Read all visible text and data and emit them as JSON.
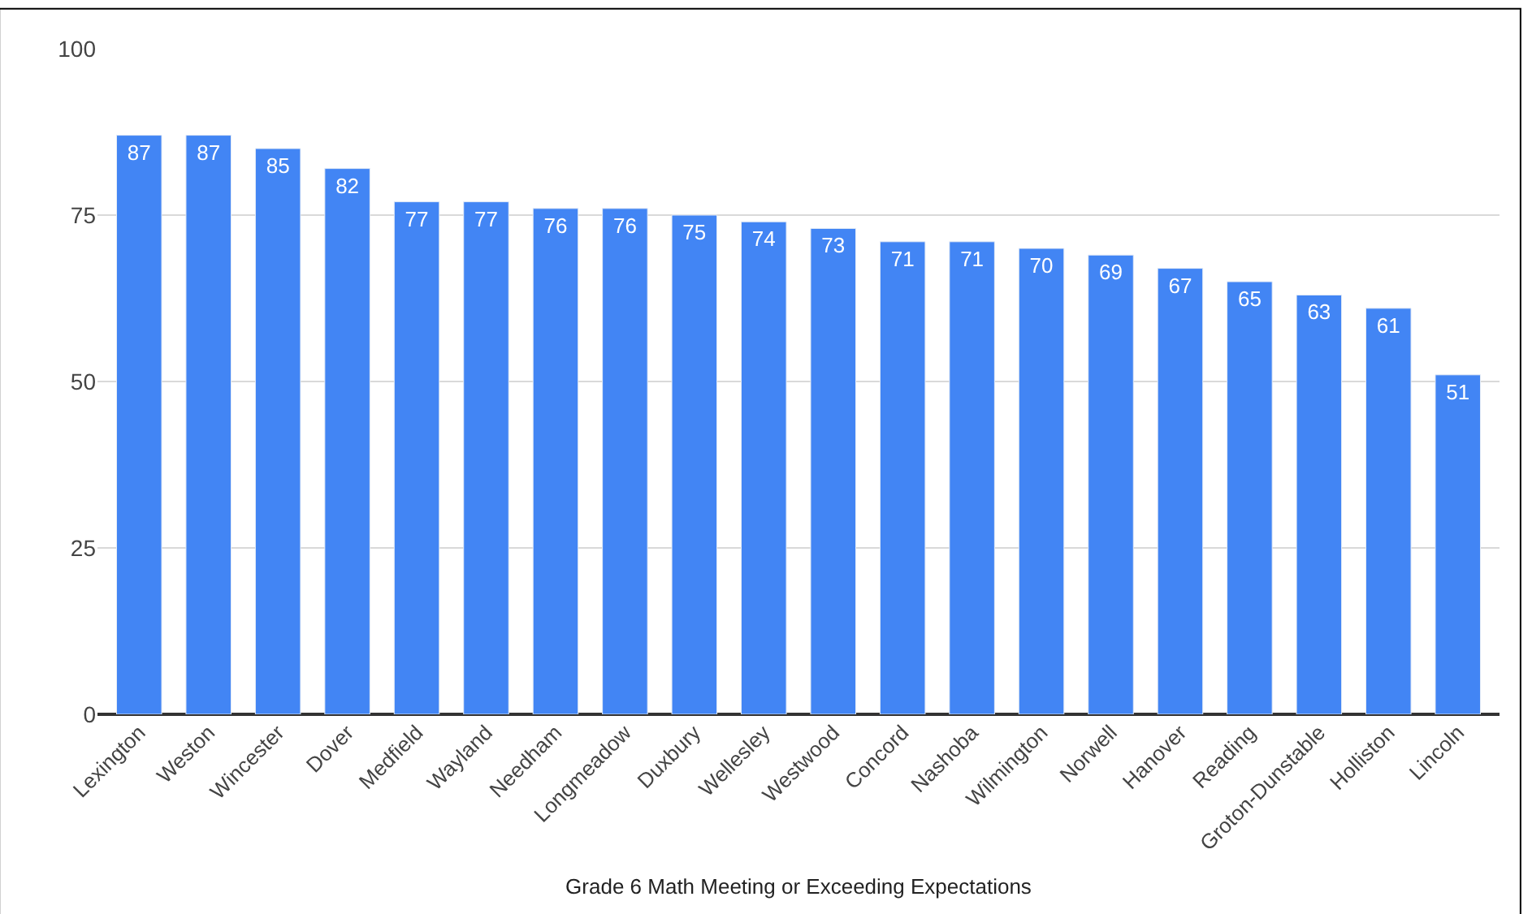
{
  "chart_data": {
    "type": "bar",
    "xlabel": "Grade 6 Math Meeting or Exceeding Expectations",
    "categories": [
      "Lexington",
      "Weston",
      "Wincester",
      "Dover",
      "Medfield",
      "Wayland",
      "Needham",
      "Longmeadow",
      "Duxbury",
      "Wellesley",
      "Westwood",
      "Concord",
      "Nashoba",
      "Wilmington",
      "Norwell",
      "Hanover",
      "Reading",
      "Groton-Dunstable",
      "Holliston",
      "Lincoln"
    ],
    "values": [
      87,
      87,
      85,
      82,
      77,
      77,
      76,
      76,
      75,
      74,
      73,
      71,
      71,
      70,
      69,
      67,
      65,
      63,
      61,
      51
    ],
    "color": "#4285f4",
    "ylim": [
      0,
      100
    ],
    "yticks": [
      0,
      25,
      50,
      75,
      100
    ],
    "grid": "y",
    "data_labels": true
  }
}
